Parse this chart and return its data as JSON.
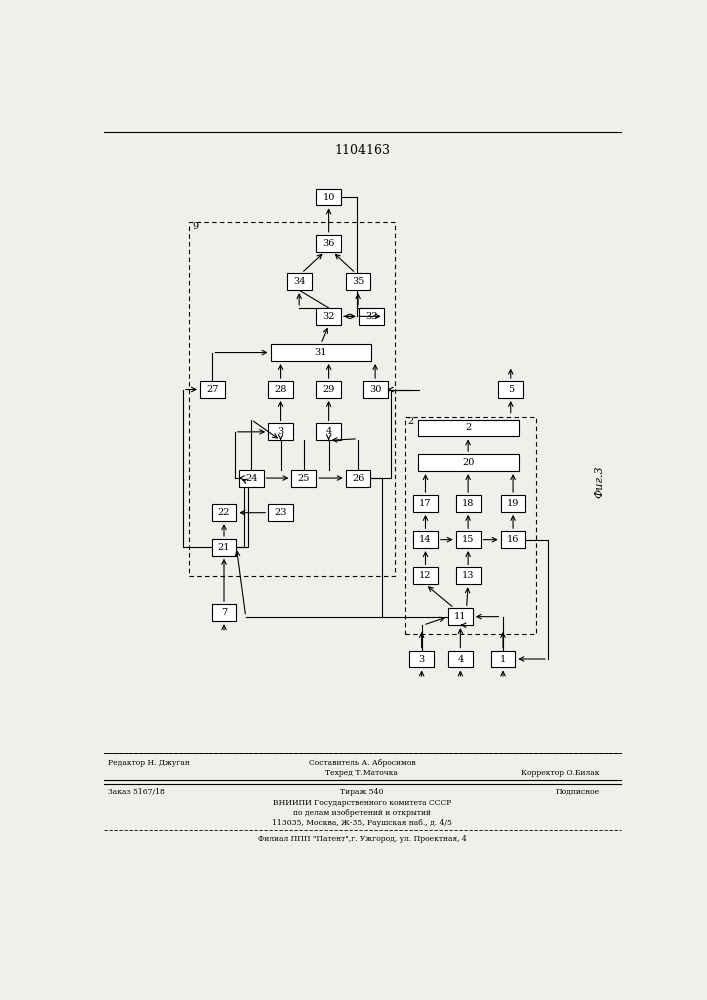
{
  "title": "1104163",
  "fig_label": "Фиг.3",
  "bg_color": "#f0efeb",
  "footer": {
    "editor": "Редактор Н. Джуган",
    "composer": "Составитель А. Абросимов",
    "tech": "Техред Т.Маточка",
    "corrector": "Корректор О.Билак",
    "order": "Заказ 5167/18",
    "copies": "Тираж 540",
    "subscription": "Подписное",
    "vniip1": "ВНИИПИ Государственного комитета СССР",
    "vniip2": "по делам изобретений и открытий",
    "vniip3": "113035, Москва, Ж-35, Раушская наб., д. 4/5",
    "patent": "Филиал ППП \"Патент\",г. Ужгород, ул. Проектная, 4"
  }
}
